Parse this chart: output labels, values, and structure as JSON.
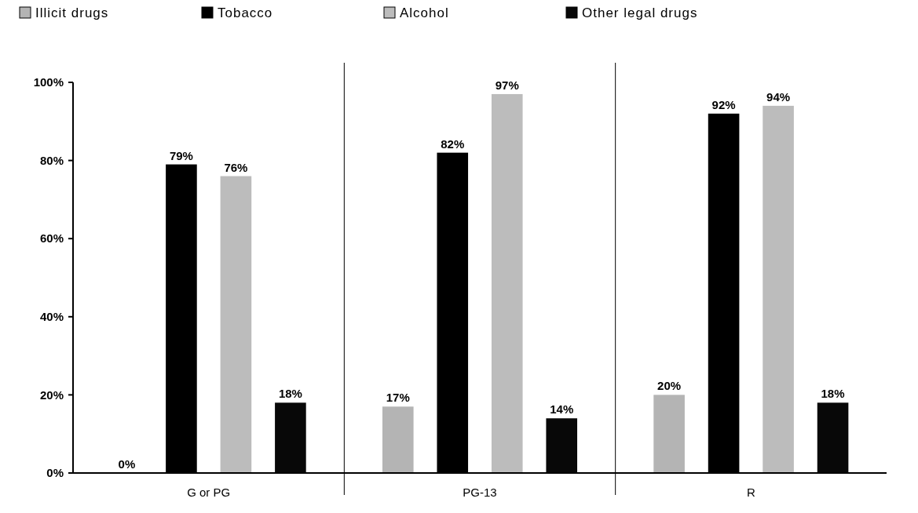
{
  "chart_data": {
    "type": "bar",
    "categories": [
      "G or PG",
      "PG-13",
      "R"
    ],
    "series": [
      {
        "name": "Illicit drugs",
        "color": "#b4b4b4",
        "values": [
          0,
          17,
          20
        ],
        "value_labels": [
          "0%",
          "17%",
          "20%"
        ]
      },
      {
        "name": "Tobacco",
        "color": "#000000",
        "values": [
          79,
          82,
          92
        ],
        "value_labels": [
          "79%",
          "82%",
          "92%"
        ]
      },
      {
        "name": "Alcohol",
        "color": "#bcbcbc",
        "values": [
          76,
          97,
          94
        ],
        "value_labels": [
          "76%",
          "97%",
          "94%"
        ]
      },
      {
        "name": "Other legal drugs",
        "color": "#080808",
        "values": [
          18,
          14,
          18
        ],
        "value_labels": [
          "18%",
          "14%",
          "18%"
        ]
      }
    ],
    "ylim": [
      0,
      100
    ],
    "yticks": [
      {
        "value": 0,
        "label": "0%"
      },
      {
        "value": 20,
        "label": "20%"
      },
      {
        "value": 40,
        "label": "40%"
      },
      {
        "value": 60,
        "label": "60%"
      },
      {
        "value": 80,
        "label": "80%"
      },
      {
        "value": 100,
        "label": "100%"
      }
    ],
    "grid": false,
    "legend": "top"
  }
}
